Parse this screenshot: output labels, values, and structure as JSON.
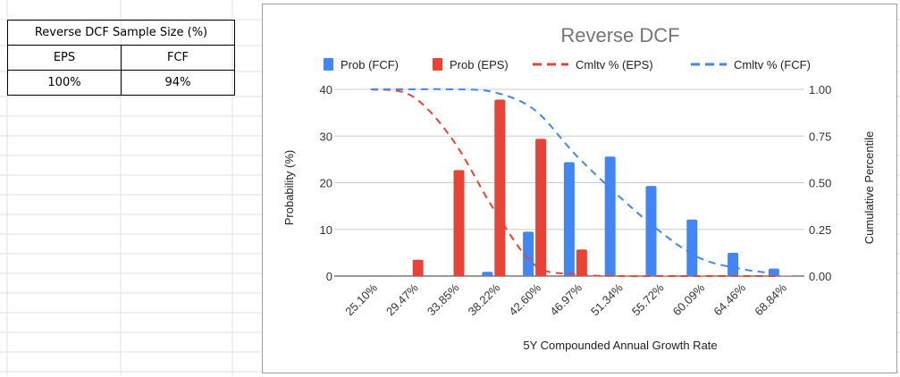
{
  "table": {
    "title": "Reverse DCF Sample Size (%)",
    "headers": [
      "EPS",
      "FCF"
    ],
    "values": [
      "100%",
      "94%"
    ]
  },
  "chart_data": {
    "type": "bar",
    "title": "Reverse DCF",
    "xlabel": "5Y Compounded Annual Growth Rate",
    "ylabel": "Probability (%)",
    "y2label": "Cumulative Percentile",
    "ylim": [
      0,
      40
    ],
    "y2lim": [
      0,
      1
    ],
    "yticks": [
      "0",
      "10",
      "20",
      "30",
      "40"
    ],
    "y2ticks": [
      "0.00",
      "0.25",
      "0.50",
      "0.75",
      "1.00"
    ],
    "legend_position": "top",
    "categories": [
      "25.10%",
      "29.47%",
      "33.85%",
      "38.22%",
      "42.60%",
      "46.97%",
      "51.34%",
      "55.72%",
      "60.09%",
      "64.46%",
      "68.84%"
    ],
    "series": [
      {
        "name": "Prob (FCF)",
        "kind": "bar",
        "axis": "left",
        "color": "#4285f4",
        "values": [
          0,
          0,
          0,
          0.9,
          9.5,
          24.4,
          25.6,
          19.3,
          12.1,
          5.0,
          1.6
        ]
      },
      {
        "name": "Prob (EPS)",
        "kind": "bar",
        "axis": "left",
        "color": "#ea4335",
        "values": [
          0,
          3.5,
          22.7,
          37.8,
          29.4,
          5.7,
          0.1,
          0.1,
          0.1,
          0.1,
          0.1
        ]
      },
      {
        "name": "Cmltv % (EPS)",
        "kind": "dashed-line",
        "axis": "right",
        "color": "#ea4335",
        "values": [
          1.0,
          0.965,
          0.73,
          0.36,
          0.06,
          0.01,
          0,
          0,
          0,
          0,
          0
        ]
      },
      {
        "name": "Cmltv % (FCF)",
        "kind": "dashed-line",
        "axis": "right",
        "color": "#4285f4",
        "values": [
          1.0,
          1.0,
          1.0,
          0.985,
          0.89,
          0.65,
          0.44,
          0.25,
          0.1,
          0.04,
          0.01
        ]
      }
    ]
  }
}
